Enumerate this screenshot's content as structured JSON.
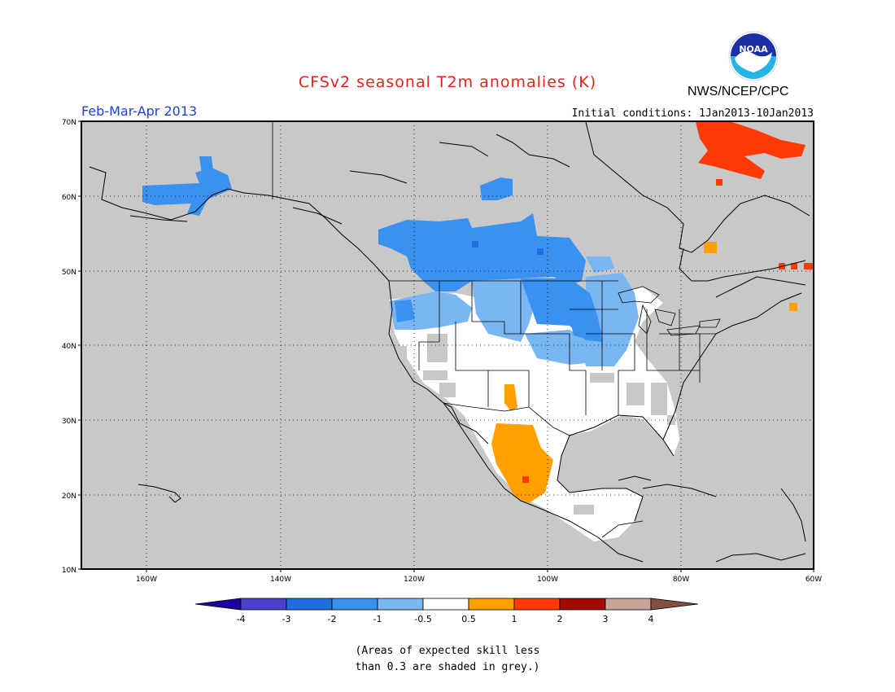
{
  "header": {
    "title": "CFSv2 seasonal T2m anomalies (K)",
    "period": "Feb-Mar-Apr 2013",
    "initial_conditions": "Initial conditions: 1Jan2013-10Jan2013",
    "agency": "NWS/NCEP/CPC",
    "logo_text": "NOAA"
  },
  "map": {
    "lat_labels": [
      "70N",
      "60N",
      "50N",
      "40N",
      "30N",
      "20N",
      "10N"
    ],
    "lon_labels": [
      "160W",
      "140W",
      "120W",
      "100W",
      "80W",
      "60W"
    ],
    "background_color": "#c8c8c8"
  },
  "legend": {
    "labels": [
      "-4",
      "-3",
      "-2",
      "-1",
      "-0.5",
      "0.5",
      "1",
      "2",
      "3",
      "4"
    ],
    "colors": [
      "#1c00a0",
      "#4a41cc",
      "#1e6ee0",
      "#3a91ef",
      "#79b6f2",
      "#ffffff",
      "#ff9f00",
      "#ff3a05",
      "#a50a00",
      "#c8a49a",
      "#805040"
    ]
  },
  "note": {
    "line1": "(Areas of expected skill less",
    "line2": "than 0.3 are shaded in grey.)"
  }
}
